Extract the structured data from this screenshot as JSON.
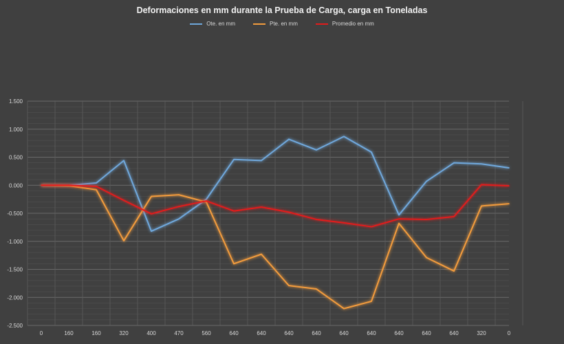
{
  "chart_data": {
    "type": "line",
    "title": "Deformaciones en mm durante la Prueba de Carga, carga en Toneladas",
    "xlabel": "",
    "ylabel": "",
    "ylim": [
      -2.5,
      1.5
    ],
    "y_ticks": [
      "1.500",
      "1.000",
      "0.500",
      "0.000",
      "-0.500",
      "-1.000",
      "-1.500",
      "-2.000",
      "-2.500"
    ],
    "categories": [
      "0",
      "160",
      "160",
      "320",
      "400",
      "470",
      "560",
      "640",
      "640",
      "640",
      "640",
      "640",
      "640",
      "640",
      "640",
      "640",
      "320",
      "0"
    ],
    "grid": true,
    "legend": "top-center",
    "series": [
      {
        "name": "Ote.  en mm",
        "color": "#6fa8dc",
        "values": [
          0.0,
          0.0,
          0.04,
          0.44,
          -0.82,
          -0.6,
          -0.25,
          0.46,
          0.44,
          0.82,
          0.63,
          0.87,
          0.59,
          -0.53,
          0.07,
          0.4,
          0.38,
          0.31
        ]
      },
      {
        "name": "Pte.  en mm",
        "color": "#f39c3d",
        "values": [
          0.0,
          -0.01,
          -0.08,
          -0.99,
          -0.2,
          -0.17,
          -0.3,
          -1.4,
          -1.23,
          -1.79,
          -1.85,
          -2.2,
          -2.07,
          -0.68,
          -1.29,
          -1.53,
          -0.37,
          -0.33
        ]
      },
      {
        "name": "Promedio  en mm",
        "color": "#e31b1b",
        "values": [
          0.0,
          0.0,
          -0.02,
          -0.27,
          -0.51,
          -0.38,
          -0.28,
          -0.46,
          -0.39,
          -0.48,
          -0.61,
          -0.67,
          -0.74,
          -0.6,
          -0.61,
          -0.56,
          0.01,
          -0.01
        ]
      }
    ]
  }
}
